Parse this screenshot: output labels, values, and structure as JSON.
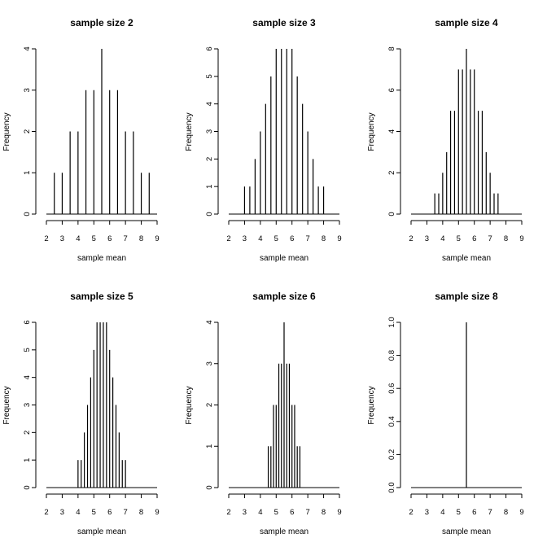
{
  "colors": {
    "background": "#ffffff",
    "ink": "#000000"
  },
  "chart_data": [
    {
      "type": "bar",
      "title": "sample size 2",
      "xlabel": "sample mean",
      "ylabel": "Frequency",
      "xlim": [
        2,
        9
      ],
      "ylim": [
        0,
        4
      ],
      "xticks": [
        2,
        3,
        4,
        5,
        6,
        7,
        8,
        9
      ],
      "yticks": [
        0,
        1,
        2,
        3,
        4
      ],
      "x": [
        2.5,
        3.0,
        3.5,
        4.0,
        4.5,
        5.0,
        5.5,
        6.0,
        6.5,
        7.0,
        7.5,
        8.0,
        8.5
      ],
      "values": [
        1,
        1,
        2,
        2,
        3,
        3,
        4,
        3,
        3,
        2,
        2,
        1,
        1
      ]
    },
    {
      "type": "bar",
      "title": "sample size 3",
      "xlabel": "sample mean",
      "ylabel": "Frequency",
      "xlim": [
        2,
        9
      ],
      "ylim": [
        0,
        6
      ],
      "xticks": [
        2,
        3,
        4,
        5,
        6,
        7,
        8,
        9
      ],
      "yticks": [
        0,
        1,
        2,
        3,
        4,
        5,
        6
      ],
      "x": [
        3.0,
        3.333,
        3.667,
        4.0,
        4.333,
        4.667,
        5.0,
        5.333,
        5.667,
        6.0,
        6.333,
        6.667,
        7.0,
        7.333,
        7.667,
        8.0
      ],
      "values": [
        1,
        1,
        2,
        3,
        4,
        5,
        6,
        6,
        6,
        6,
        5,
        4,
        3,
        2,
        1,
        1
      ]
    },
    {
      "type": "bar",
      "title": "sample size 4",
      "xlabel": "sample mean",
      "ylabel": "Frequency",
      "xlim": [
        2,
        9
      ],
      "ylim": [
        0,
        8
      ],
      "xticks": [
        2,
        3,
        4,
        5,
        6,
        7,
        8,
        9
      ],
      "yticks": [
        0,
        2,
        4,
        6,
        8
      ],
      "x": [
        3.5,
        3.75,
        4.0,
        4.25,
        4.5,
        4.75,
        5.0,
        5.25,
        5.5,
        5.75,
        6.0,
        6.25,
        6.5,
        6.75,
        7.0,
        7.25,
        7.5
      ],
      "values": [
        1,
        1,
        2,
        3,
        5,
        5,
        7,
        7,
        8,
        7,
        7,
        5,
        5,
        3,
        2,
        1,
        1
      ]
    },
    {
      "type": "bar",
      "title": "sample size 5",
      "xlabel": "sample mean",
      "ylabel": "Frequency",
      "xlim": [
        2,
        9
      ],
      "ylim": [
        0,
        6
      ],
      "xticks": [
        2,
        3,
        4,
        5,
        6,
        7,
        8,
        9
      ],
      "yticks": [
        0,
        1,
        2,
        3,
        4,
        5,
        6
      ],
      "x": [
        4.0,
        4.2,
        4.4,
        4.6,
        4.8,
        5.0,
        5.2,
        5.4,
        5.6,
        5.8,
        6.0,
        6.2,
        6.4,
        6.6,
        6.8,
        7.0
      ],
      "values": [
        1,
        1,
        2,
        3,
        4,
        5,
        6,
        6,
        6,
        6,
        5,
        4,
        3,
        2,
        1,
        1
      ]
    },
    {
      "type": "bar",
      "title": "sample size 6",
      "xlabel": "sample mean",
      "ylabel": "Frequency",
      "xlim": [
        2,
        9
      ],
      "ylim": [
        0,
        4
      ],
      "xticks": [
        2,
        3,
        4,
        5,
        6,
        7,
        8,
        9
      ],
      "yticks": [
        0,
        1,
        2,
        3,
        4
      ],
      "x": [
        4.5,
        4.667,
        4.833,
        5.0,
        5.167,
        5.333,
        5.5,
        5.667,
        5.833,
        6.0,
        6.167,
        6.333,
        6.5
      ],
      "values": [
        1,
        1,
        2,
        2,
        3,
        3,
        4,
        3,
        3,
        2,
        2,
        1,
        1
      ]
    },
    {
      "type": "bar",
      "title": "sample size 8",
      "xlabel": "sample mean",
      "ylabel": "Frequency",
      "xlim": [
        2,
        9
      ],
      "ylim": [
        0,
        1
      ],
      "xticks": [
        2,
        3,
        4,
        5,
        6,
        7,
        8,
        9
      ],
      "yticks": [
        0.0,
        0.2,
        0.4,
        0.6,
        0.8,
        1.0
      ],
      "ytick_labels": [
        "0.0",
        "0.2",
        "0.4",
        "0.6",
        "0.8",
        "1.0"
      ],
      "x": [
        5.5
      ],
      "values": [
        1
      ]
    }
  ]
}
